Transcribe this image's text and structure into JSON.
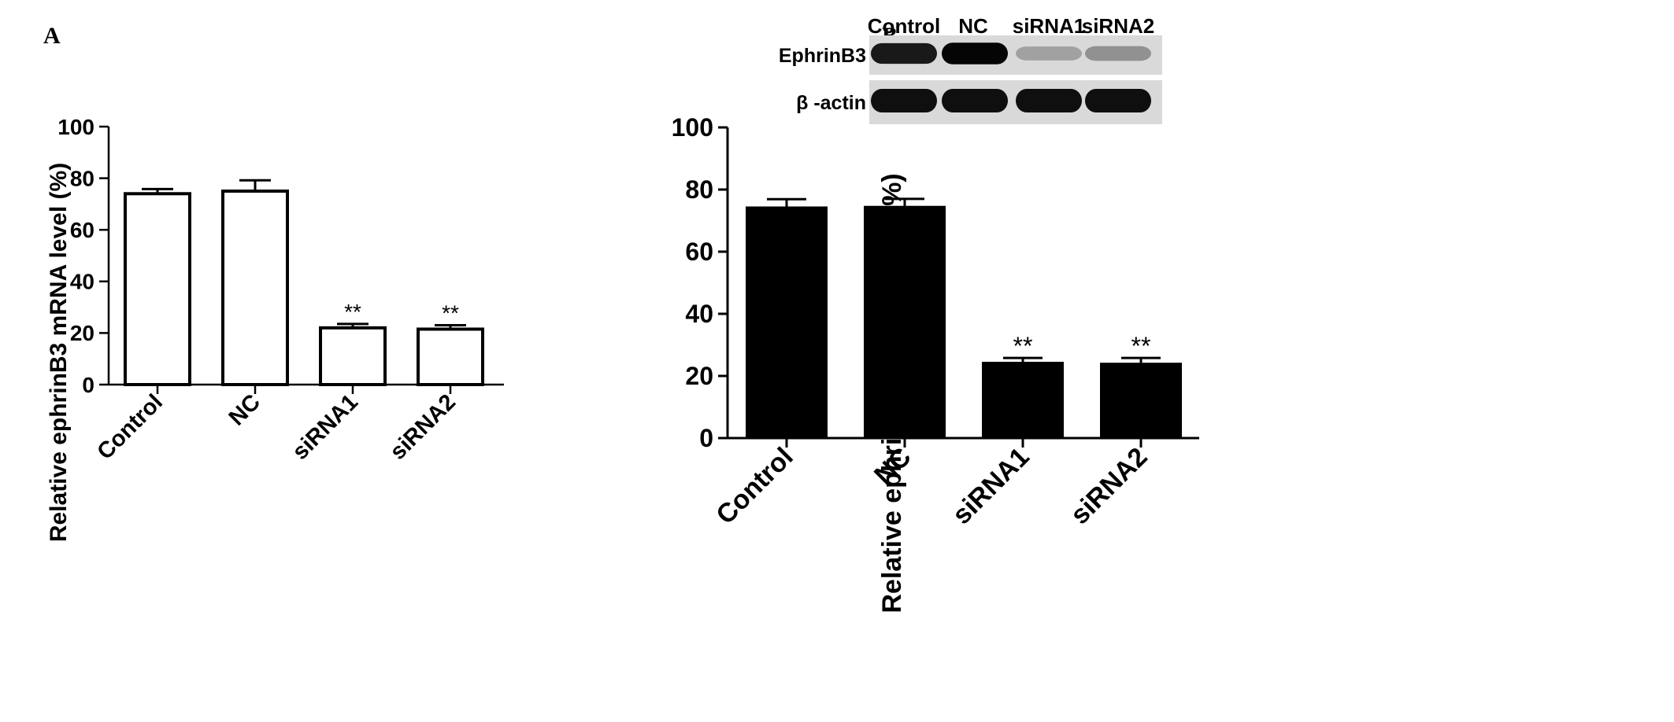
{
  "panels": [
    {
      "label": "A",
      "chart_data": {
        "type": "bar",
        "categories": [
          "Control",
          "NC",
          "siRNA1",
          "siRNA2"
        ],
        "values": [
          74,
          75,
          22,
          21.5
        ],
        "errors": [
          1.8,
          4.2,
          1.5,
          1.5
        ],
        "annotations": [
          "",
          "",
          "**",
          "**"
        ],
        "ylabel": "Relative ephrinB3 mRNA level (%)",
        "ylim": [
          0,
          100
        ],
        "yticks": [
          0,
          20,
          40,
          60,
          80,
          100
        ],
        "bar_color": "#ffffff",
        "grid": false
      }
    },
    {
      "label": "B",
      "chart_data": {
        "type": "bar",
        "categories": [
          "Control",
          "NC",
          "siRNA1",
          "siRNA2"
        ],
        "values": [
          74.3,
          74.5,
          24.3,
          24
        ],
        "errors": [
          2.6,
          2.5,
          1.5,
          1.8
        ],
        "annotations": [
          "",
          "",
          "**",
          "**"
        ],
        "ylabel": "Relative ephrinB3 protein level (%)",
        "ylim": [
          0,
          100
        ],
        "yticks": [
          0,
          20,
          40,
          60,
          80,
          100
        ],
        "bar_color": "#000000",
        "grid": false
      },
      "blot": {
        "lanes": [
          "Control",
          "NC",
          "siRNA1",
          "siRNA2"
        ],
        "rows": [
          {
            "label": "EphrinB3",
            "intensities": [
              0.9,
              1.0,
              0.22,
              0.3
            ]
          },
          {
            "label": "β -actin",
            "intensities": [
              0.95,
              0.95,
              0.95,
              0.95
            ]
          }
        ]
      }
    }
  ]
}
